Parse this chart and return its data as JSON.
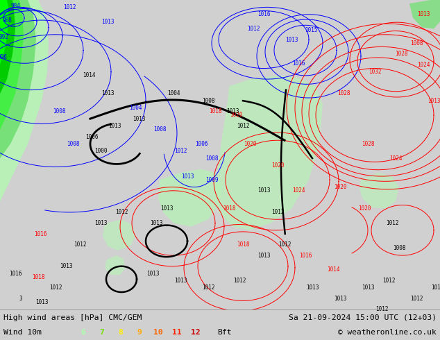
{
  "title_left": "High wind areas [hPa] CMC/GEM",
  "title_right": "Sa 21-09-2024 15:00 UTC (12+03)",
  "subtitle_left": "Wind 10m",
  "bft_label": "Bft",
  "bft_values": [
    "6",
    "7",
    "8",
    "9",
    "10",
    "11",
    "12"
  ],
  "bft_colors": [
    "#aaffaa",
    "#77dd00",
    "#ffee00",
    "#ffaa00",
    "#ff6600",
    "#ff2200",
    "#cc0000"
  ],
  "copyright": "© weatheronline.co.uk",
  "bg_color": "#d0d0d0",
  "map_bg": "#d8d8d8",
  "figsize": [
    6.34,
    4.9
  ],
  "dpi": 100,
  "bottom_text_color": "#000000",
  "contour_blue": "#0000ff",
  "contour_red": "#ff0000",
  "contour_black": "#000000",
  "green_light": "#b8f0b8",
  "green_medium": "#78e078",
  "green_dark": "#00cc00",
  "green_bright": "#44ff44"
}
